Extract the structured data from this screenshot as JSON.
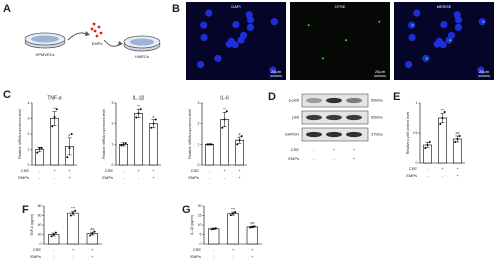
{
  "figure": {
    "panels": [
      "A",
      "B",
      "C",
      "D",
      "E",
      "F",
      "G"
    ],
    "diagram": {
      "source": "HPMVECs",
      "particles": "EMPs",
      "target": "HMECs"
    },
    "images": [
      {
        "label": "DAPI",
        "scale": "20μm"
      },
      {
        "label": "CFSE",
        "scale": "20μm"
      },
      {
        "label": "MERGE",
        "scale": "20μm"
      }
    ],
    "blot": {
      "bands": [
        {
          "name": "p-p65",
          "size": "65kDa"
        },
        {
          "name": "p65",
          "size": "65kDa"
        },
        {
          "name": "GAPDH",
          "size": "37kDa"
        }
      ],
      "conditions": [
        {
          "name": "CSE",
          "signs": [
            "-",
            "+",
            "+"
          ]
        },
        {
          "name": "EMPs",
          "signs": [
            "-",
            "-",
            "+"
          ]
        }
      ]
    }
  },
  "chart_data": [
    {
      "type": "bar",
      "title": "TNF-α",
      "ylabel": "Relative mRNA expression level",
      "values": [
        1,
        3,
        1.2
      ],
      "errors": [
        0.15,
        0.45,
        0.55
      ],
      "points": [
        [
          0.8,
          1.1,
          1.1
        ],
        [
          2.5,
          3.1,
          3.6
        ],
        [
          0.5,
          1.1,
          2.0
        ]
      ],
      "markers": [
        null,
        "**",
        "#"
      ],
      "ylim": [
        0,
        4
      ],
      "yticks": [
        0,
        1,
        2,
        3,
        4
      ],
      "conditions": [
        {
          "name": "CSE",
          "signs": [
            "-",
            "+",
            "+"
          ]
        },
        {
          "name": "EMPs",
          "signs": [
            "-",
            "-",
            "+"
          ]
        }
      ]
    },
    {
      "type": "bar",
      "title": "IL-1β",
      "ylabel": "Relative mRNA expression level",
      "values": [
        1,
        2.5,
        2.0
      ],
      "errors": [
        0.08,
        0.2,
        0.2
      ],
      "points": [
        [
          0.95,
          1.0,
          1.05
        ],
        [
          2.3,
          2.5,
          2.7
        ],
        [
          1.8,
          2.0,
          2.2
        ]
      ],
      "markers": [
        null,
        "**",
        "#"
      ],
      "ylim": [
        0,
        3
      ],
      "yticks": [
        0,
        1,
        2,
        3
      ],
      "conditions": [
        {
          "name": "CSE",
          "signs": [
            "-",
            "+",
            "+"
          ]
        },
        {
          "name": "EMPs",
          "signs": [
            "-",
            "-",
            "+"
          ]
        }
      ]
    },
    {
      "type": "bar",
      "title": "IL-6",
      "ylabel": "Relative mRNA expression level",
      "values": [
        1,
        2.2,
        1.2
      ],
      "errors": [
        0.03,
        0.35,
        0.15
      ],
      "points": [
        [
          1.0,
          1.0,
          1.0
        ],
        [
          1.8,
          2.2,
          2.6
        ],
        [
          1.0,
          1.2,
          1.4
        ]
      ],
      "markers": [
        null,
        "**",
        "#"
      ],
      "ylim": [
        0,
        3
      ],
      "yticks": [
        0,
        1,
        2,
        3
      ],
      "conditions": [
        {
          "name": "CSE",
          "signs": [
            "-",
            "+",
            "+"
          ]
        },
        {
          "name": "EMPs",
          "signs": [
            "-",
            "-",
            "+"
          ]
        }
      ]
    },
    {
      "type": "bar",
      "ylabel": "Relative p-p65 protein level",
      "values": [
        0.3,
        0.75,
        0.4
      ],
      "errors": [
        0.04,
        0.08,
        0.05
      ],
      "points": [
        [
          0.25,
          0.3,
          0.35
        ],
        [
          0.65,
          0.75,
          0.85
        ],
        [
          0.35,
          0.4,
          0.45
        ]
      ],
      "markers": [
        null,
        "***",
        "##"
      ],
      "ylim": [
        0,
        1
      ],
      "yticks": [
        0,
        0.5,
        1
      ],
      "conditions": [
        {
          "name": "CSE",
          "signs": [
            "-",
            "+",
            "+"
          ]
        },
        {
          "name": "EMPs",
          "signs": [
            "-",
            "-",
            "+"
          ]
        }
      ]
    },
    {
      "type": "bar",
      "ylabel": "TNF-α (pg/ml)",
      "values": [
        20,
        65,
        22
      ],
      "errors": [
        3,
        4,
        3
      ],
      "points": [
        [
          16,
          20,
          24
        ],
        [
          60,
          65,
          70
        ],
        [
          18,
          22,
          26
        ]
      ],
      "markers": [
        null,
        "***",
        "##"
      ],
      "ylim": [
        0,
        80
      ],
      "yticks": [
        0,
        20,
        40,
        60,
        80
      ],
      "conditions": [
        {
          "name": "CSE",
          "signs": [
            "-",
            "+",
            "+"
          ]
        },
        {
          "name": "EMPs",
          "signs": [
            "-",
            "-",
            "+"
          ]
        }
      ]
    },
    {
      "type": "bar",
      "ylabel": "IL-1β (pg/ml)",
      "values": [
        8,
        16,
        9
      ],
      "errors": [
        0.4,
        0.8,
        0.4
      ],
      "points": [
        [
          7.7,
          8,
          8.3
        ],
        [
          15.2,
          16,
          16.8
        ],
        [
          8.7,
          9,
          9.3
        ]
      ],
      "markers": [
        null,
        "***",
        "##"
      ],
      "ylim": [
        0,
        20
      ],
      "yticks": [
        0,
        5,
        10,
        15,
        20
      ],
      "conditions": [
        {
          "name": "CSE",
          "signs": [
            "-",
            "+",
            "+"
          ]
        },
        {
          "name": "EMPs",
          "signs": [
            "-",
            "-",
            "+"
          ]
        }
      ]
    }
  ]
}
